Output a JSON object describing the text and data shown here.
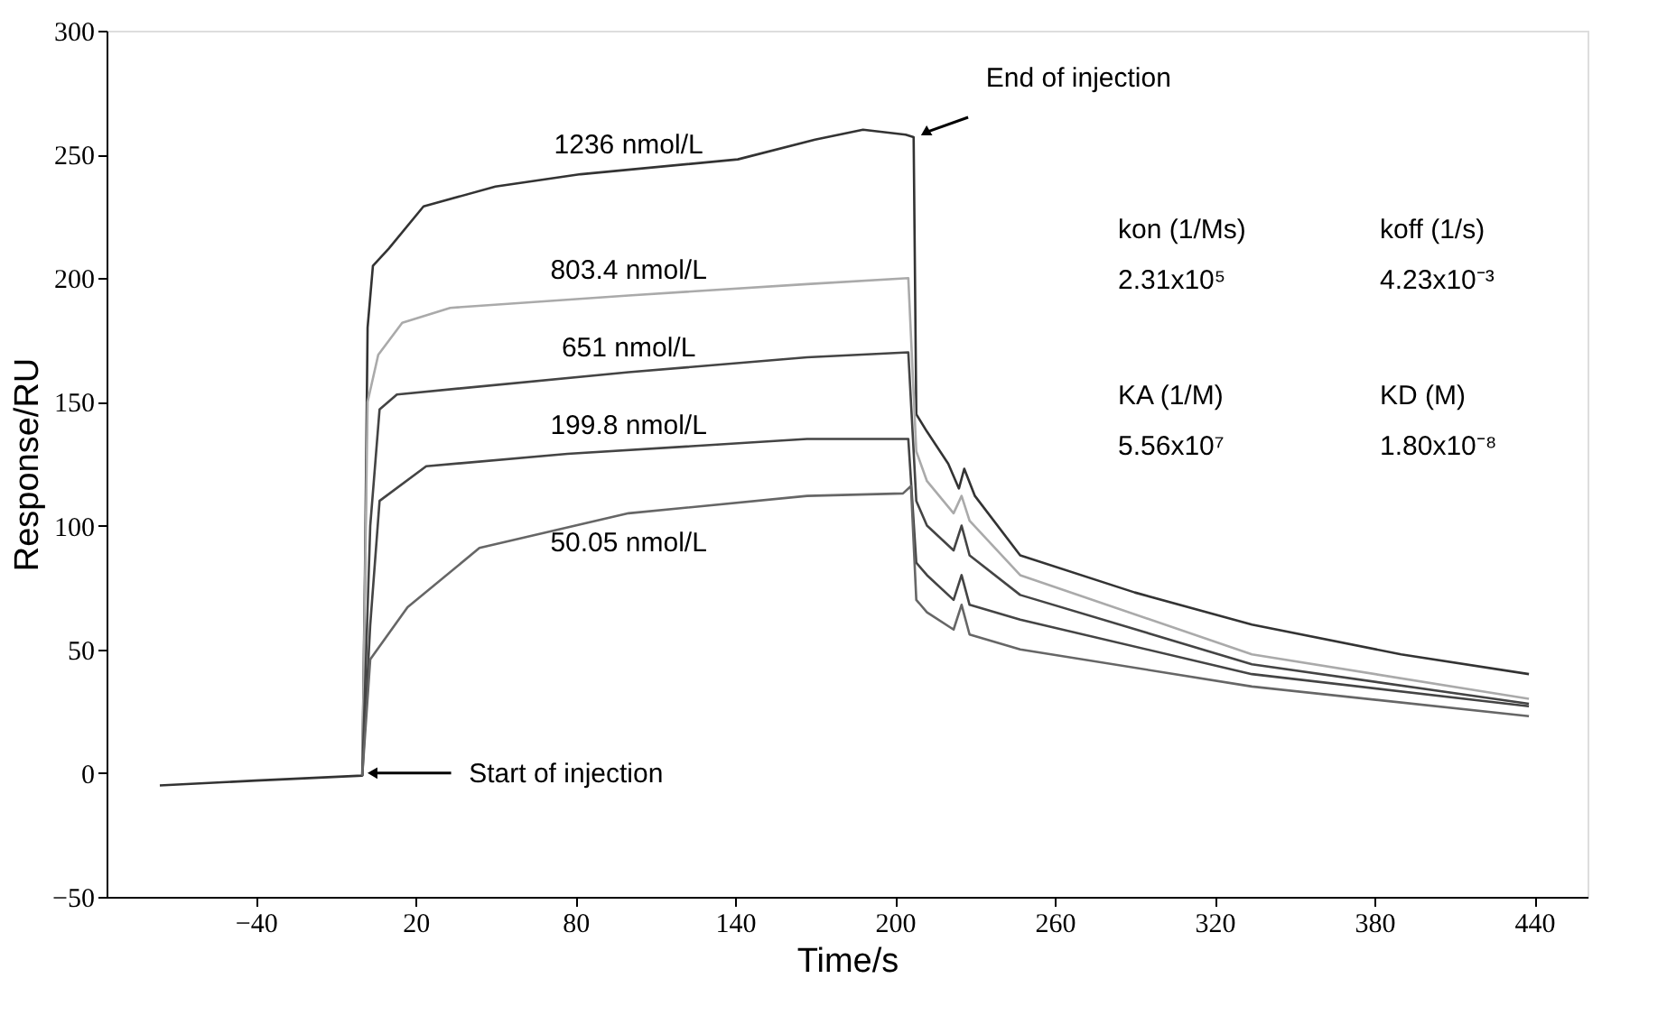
{
  "chart_data": {
    "type": "line",
    "xlabel": "Time/s",
    "ylabel": "Response/RU",
    "xlim": [
      -96,
      460
    ],
    "xticks": [
      -40,
      20,
      80,
      140,
      200,
      260,
      320,
      380,
      440
    ],
    "ylim": [
      -50,
      300
    ],
    "yticks": [
      -50,
      0,
      50,
      100,
      150,
      200,
      250,
      300
    ],
    "grid": false,
    "legend": false,
    "marker": "none",
    "line_style": "solid",
    "series": [
      {
        "name": "1236 nmol/L",
        "color": "#333333",
        "x": [
          -76,
          -40,
          0,
          1,
          2,
          4,
          10,
          23,
          50,
          82,
          141,
          170,
          188,
          204,
          207,
          208,
          212,
          220,
          224,
          226,
          230,
          247,
          290,
          334,
          390,
          438
        ],
        "values": [
          -5,
          -3,
          -1,
          80,
          180,
          205,
          212,
          229,
          237,
          242,
          248,
          256,
          260,
          258,
          257,
          145,
          138,
          125,
          115,
          123,
          112,
          88,
          73,
          60,
          48,
          40
        ]
      },
      {
        "name": "803.4 nmol/L",
        "color": "#aaaaaa",
        "x": [
          0,
          2,
          6,
          15,
          33,
          100,
          167,
          205,
          208,
          212,
          222,
          225,
          228,
          247,
          334,
          438
        ],
        "values": [
          -1,
          150,
          169,
          182,
          188,
          193,
          197.6,
          200,
          130,
          118,
          105,
          112,
          102,
          80,
          48,
          30
        ]
      },
      {
        "name": "651 nmol/L",
        "color": "#444444",
        "x": [
          0,
          3,
          6.5,
          13,
          100,
          167,
          205,
          208,
          212,
          222,
          225,
          228,
          247,
          334,
          438
        ],
        "values": [
          -1,
          100,
          147,
          153,
          162,
          168,
          170,
          110,
          100,
          90,
          100,
          88,
          72,
          44,
          28
        ]
      },
      {
        "name": "199.8 nmol/L",
        "color": "#444444",
        "x": [
          0,
          3,
          6.5,
          24,
          77,
          167,
          205,
          208,
          212,
          222,
          225,
          228,
          247,
          334,
          438
        ],
        "values": [
          -1,
          60,
          110,
          124,
          129,
          135,
          135,
          85,
          80,
          70,
          80,
          68,
          62,
          40,
          27
        ]
      },
      {
        "name": "50.05 nmol/L",
        "color": "#666666",
        "x": [
          0,
          3,
          17,
          44,
          100,
          167,
          203,
          206,
          208,
          212,
          222,
          225,
          228,
          247,
          334,
          438
        ],
        "values": [
          -1,
          46,
          67,
          91,
          105,
          112,
          113,
          116,
          70,
          65,
          58,
          68,
          56,
          50,
          35,
          23
        ]
      }
    ],
    "annotations": [
      {
        "text": "End of injection",
        "x": 208,
        "y": 258
      },
      {
        "text": "Start of injection",
        "x": 0,
        "y": 0
      },
      "kon (1/Ms)",
      "koff (1/s)",
      "2.31x10⁵",
      "4.23x10⁻³",
      "KA (1/M)",
      "KD (M)",
      "5.56x10⁷",
      "1.80x10⁻⁸"
    ]
  }
}
